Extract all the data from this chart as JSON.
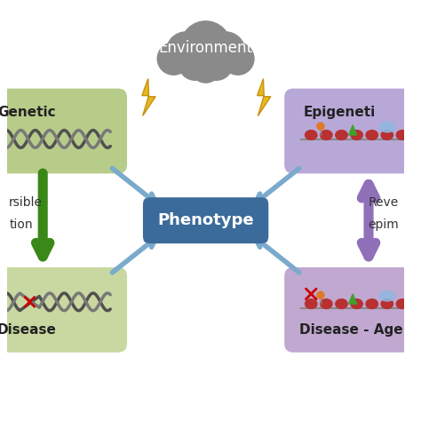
{
  "background_color": "#ffffff",
  "cloud_color": "#8a8a8a",
  "cloud_text": "Environment",
  "cloud_text_color": "#ffffff",
  "lightning_color": "#e8b820",
  "lightning_outline": "#c89010",
  "center_box_color": "#3a6b9a",
  "center_box_text": "Phenotype",
  "center_box_text_color": "#ffffff",
  "top_left_box_color": "#b8cc8a",
  "top_left_box_text": "Genetic",
  "top_right_box_color": "#b8a8d8",
  "top_right_box_text": "Epigeneti",
  "bottom_left_box_color": "#c8d8a0",
  "bottom_left_box_text": "Disease",
  "bottom_right_box_color": "#c0a8d0",
  "bottom_right_box_text": "Disease - Age",
  "left_label1": "rsible",
  "left_label2": "tion",
  "right_label1": "Reve",
  "right_label2": "epim",
  "blue_arrow_color": "#7aaacc",
  "green_arrow_color_top": "#90c840",
  "green_arrow_color_bottom": "#408020",
  "purple_arrow_color": "#9070b8",
  "purple_arrow_light": "#c8b8e0",
  "dna_color1": "#505050",
  "dna_color2": "#787878",
  "nucleosome_color": "#b83030",
  "nucleosome_line_color": "#888888"
}
